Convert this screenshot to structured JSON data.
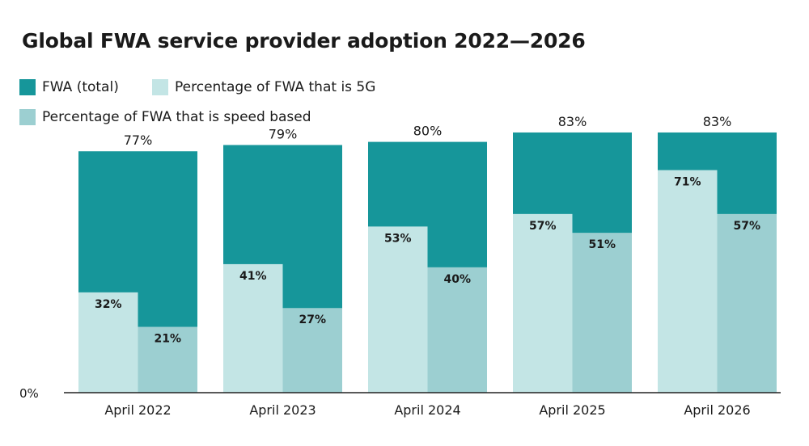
{
  "chart_data": {
    "type": "bar",
    "title": "Global FWA service provider adoption 2022—2026",
    "categories": [
      "April 2022",
      "April 2023",
      "April 2024",
      "April 2025",
      "April 2026"
    ],
    "series": [
      {
        "name": "FWA (total)",
        "values": [
          77,
          79,
          80,
          83,
          83
        ],
        "color": "#16969a",
        "labels": [
          "77%",
          "79%",
          "80%",
          "83%",
          "83%"
        ]
      },
      {
        "name": "Percentage of FWA that is 5G",
        "values": [
          32,
          41,
          53,
          57,
          71
        ],
        "color": "#c3e5e5",
        "labels": [
          "32%",
          "41%",
          "53%",
          "57%",
          "71%"
        ]
      },
      {
        "name": "Percentage of FWA that is speed based",
        "values": [
          21,
          27,
          40,
          51,
          57
        ],
        "color": "#9ccfd1",
        "labels": [
          "21%",
          "27%",
          "40%",
          "51%",
          "57%"
        ]
      }
    ],
    "ylim": [
      0,
      100
    ],
    "y_axis_label": "0%",
    "grid": false,
    "legend_position": "top-left"
  }
}
